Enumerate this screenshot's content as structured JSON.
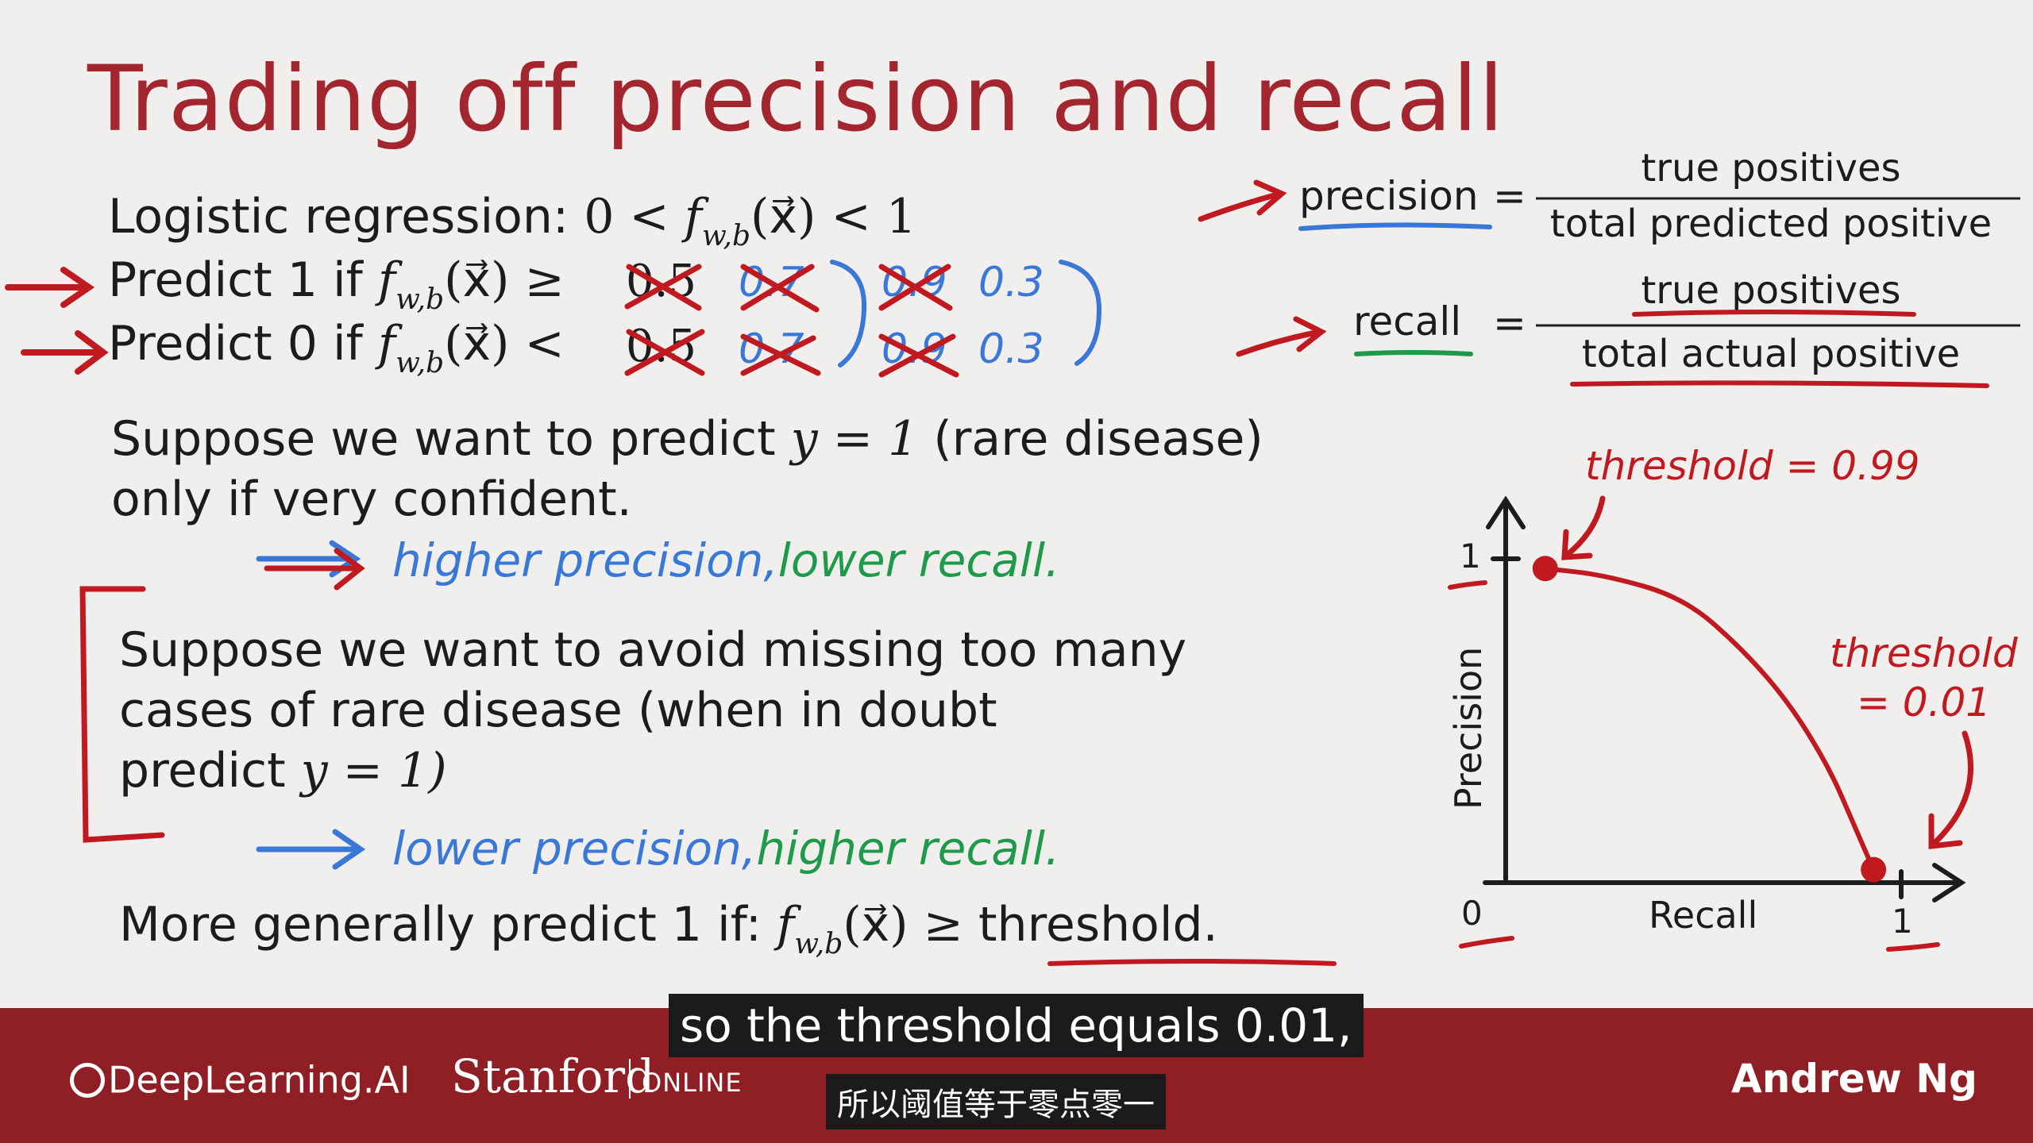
{
  "slide": {
    "title": "Trading off precision and recall",
    "logistic_label": "Logistic regression:",
    "logistic_expr_left": "0 <",
    "f_symbol": "f",
    "f_sub": "w,b",
    "f_arg": "(x⃗)",
    "logistic_expr_right": "< 1",
    "predict1_label": "Predict 1 if",
    "predict0_label": "Predict 0 if",
    "geq": "≥",
    "lt": "<",
    "crossed_05": "0.5",
    "crossed_07": "0.7",
    "crossed_09": "0.9",
    "new_value": "0.3",
    "suppose1_line1": "Suppose we want to predict",
    "y_eq_1": "y = 1",
    "suppose1_paren": "(rare disease)",
    "suppose1_line2": "only if very confident.",
    "note1_a": "higher precision,",
    "note1_b": "lower recall.",
    "suppose2_line1": "Suppose we want to avoid missing too many",
    "suppose2_line2": "cases of rare disease (when in doubt",
    "suppose2_line3_a": "predict",
    "suppose2_line3_b": "y = 1)",
    "note2_a": "lower precision,",
    "note2_b": "higher recall.",
    "general_label": "More generally predict 1 if:",
    "threshold_word": "threshold."
  },
  "formulas": {
    "precision_label": "precision",
    "recall_label": "recall",
    "equals": "=",
    "precision_num": "true positives",
    "precision_den": "total predicted positive",
    "recall_num": "true positives",
    "recall_den": "total actual positive"
  },
  "chart_data": {
    "type": "line",
    "title": "",
    "xlabel": "Recall",
    "ylabel": "Precision",
    "xlim": [
      0,
      1
    ],
    "ylim": [
      0,
      1
    ],
    "x_ticks": [
      "0",
      "1"
    ],
    "y_ticks": [
      "1"
    ],
    "series": [
      {
        "x": [
          0.1,
          0.25,
          0.45,
          0.6,
          0.72,
          0.82,
          0.88,
          0.93
        ],
        "y": [
          0.97,
          0.95,
          0.88,
          0.72,
          0.55,
          0.35,
          0.18,
          0.04
        ]
      }
    ],
    "annotations": [
      {
        "text": "threshold = 0.99",
        "x": 0.1,
        "y": 0.97
      },
      {
        "text": "threshold",
        "x": 0.93,
        "y": 0.04
      },
      {
        "text": "= 0.01",
        "x": 0.93,
        "y": 0.04
      }
    ]
  },
  "footer": {
    "logo_deeplearning": "DeepLearning.AI",
    "logo_stanford": "Stanford",
    "logo_online": "ONLINE",
    "author": "Andrew Ng"
  },
  "captions": {
    "english": "so the threshold equals 0.01,",
    "chinese": "所以阈值等于零点零一"
  },
  "colors": {
    "title_red": "#a3262e",
    "ink_red": "#c0191f",
    "ink_blue": "#3a78d8",
    "ink_green": "#1f9a4a",
    "footer_bg": "#8f1f24"
  }
}
